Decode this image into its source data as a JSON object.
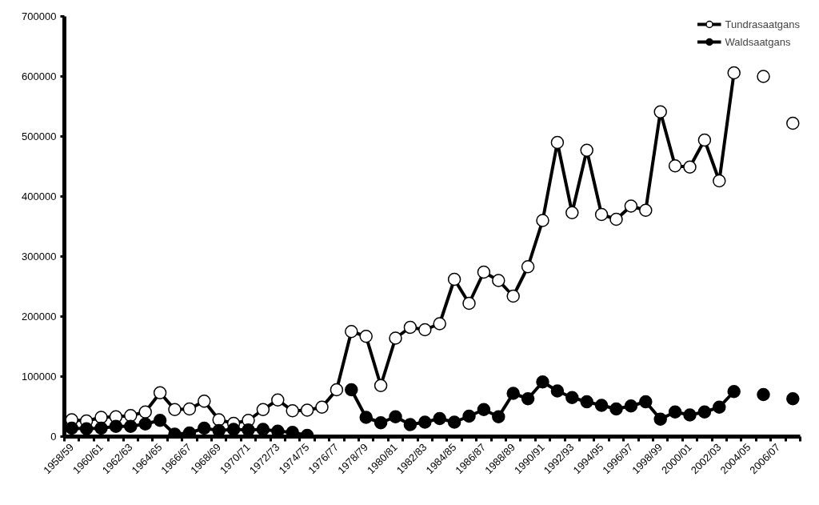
{
  "chart_data": {
    "type": "line",
    "categories": [
      "1958/59",
      null,
      "1960/61",
      null,
      "1962/63",
      null,
      "1964/65",
      null,
      "1966/67",
      null,
      "1968/69",
      null,
      "1970/71",
      null,
      "1972/73",
      null,
      "1974/75",
      null,
      "1976/77",
      null,
      "1978/79",
      null,
      "1980/81",
      null,
      "1982/83",
      null,
      "1984/85",
      null,
      "1986/87",
      null,
      "1988/89",
      null,
      "1990/91",
      null,
      "1992/93",
      null,
      "1994/95",
      null,
      "1996/97",
      null,
      "1998/99",
      null,
      "2000/01",
      null,
      "2002/03",
      null,
      "2004/05",
      null,
      "2006/07",
      null
    ],
    "series": [
      {
        "name": "Tundrasaatgans",
        "color": "#ffffff",
        "values": [
          28000,
          26000,
          32000,
          33000,
          35000,
          41000,
          73000,
          45000,
          46000,
          59000,
          28000,
          22000,
          27000,
          45000,
          61000,
          43000,
          44000,
          49000,
          78000,
          175000,
          167000,
          85000,
          164000,
          182000,
          178000,
          188000,
          262000,
          222000,
          274000,
          260000,
          234000,
          283000,
          360000,
          490000,
          373000,
          477000,
          370000,
          362000,
          384000,
          377000,
          541000,
          451000,
          449000,
          494000,
          426000,
          606000,
          null,
          600000,
          null,
          522000
        ]
      },
      {
        "name": "Waldsaatgans",
        "color": "#000000",
        "values": [
          14000,
          13000,
          14000,
          17000,
          17000,
          21000,
          27000,
          4000,
          6000,
          14000,
          10000,
          12000,
          11000,
          12000,
          9000,
          7000,
          2000,
          null,
          null,
          78000,
          32000,
          23000,
          33000,
          20000,
          24000,
          30000,
          24000,
          34000,
          45000,
          33000,
          72000,
          63000,
          91000,
          76000,
          65000,
          58000,
          52000,
          46000,
          51000,
          58000,
          29000,
          41000,
          36000,
          41000,
          49000,
          75000,
          null,
          70000,
          null,
          63000
        ]
      }
    ],
    "ylim": [
      0,
      700000
    ],
    "yticks": [
      0,
      100000,
      200000,
      300000,
      400000,
      500000,
      600000,
      700000
    ],
    "marker": "circle",
    "grid": false,
    "legend": "top right"
  }
}
